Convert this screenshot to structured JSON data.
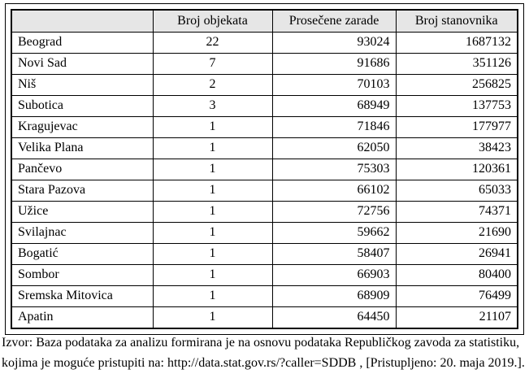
{
  "colors": {
    "header_bg": "#e6e6e6",
    "border": "#000000",
    "background": "#ffffff",
    "text": "#000000"
  },
  "table": {
    "columns": [
      "",
      "Broj objekata",
      "Prosečene zarade",
      "Broj stanovnika"
    ],
    "rows": [
      [
        "Beograd",
        "22",
        "93024",
        "1687132"
      ],
      [
        "Novi Sad",
        "7",
        "91686",
        "351126"
      ],
      [
        "Niš",
        "2",
        "70103",
        "256825"
      ],
      [
        "Subotica",
        "3",
        "68949",
        "137753"
      ],
      [
        "Kragujevac",
        "1",
        "71846",
        "177977"
      ],
      [
        "Velika Plana",
        "1",
        "62050",
        "38423"
      ],
      [
        "Pančevo",
        "1",
        "75303",
        "120361"
      ],
      [
        "Stara Pazova",
        "1",
        "66102",
        "65033"
      ],
      [
        "Užice",
        "1",
        "72756",
        "74371"
      ],
      [
        "Svilajnac",
        "1",
        "59662",
        "21690"
      ],
      [
        "Bogatić",
        "1",
        "58407",
        "26941"
      ],
      [
        "Sombor",
        "1",
        "66903",
        "80400"
      ],
      [
        "Sremska Mitovica",
        "1",
        "68909",
        "76499"
      ],
      [
        "Apatin",
        "1",
        "64450",
        "21107"
      ]
    ]
  },
  "caption": {
    "text": "Izvor: Baza podataka za analizu formirana je na osnovu podataka Republičkog zavoda za statistiku, kojima je moguće pristupiti na: http://data.stat.gov.rs/?caller=SDDB , [Pristupljeno: 20. maja 2019.]."
  }
}
